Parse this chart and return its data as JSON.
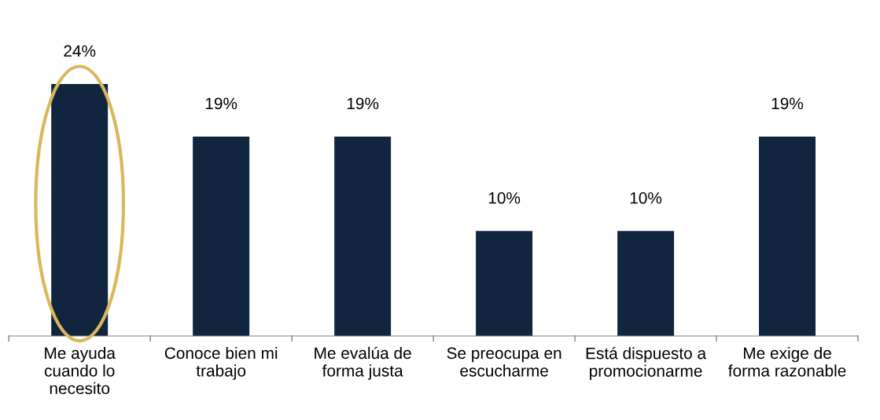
{
  "chart_data": {
    "type": "bar",
    "categories": [
      "Me ayuda\ncuando lo\nnecesito",
      "Conoce bien mi\ntrabajo",
      "Me evalúa de\nforma justa",
      "Se preocupa en\nescucharme",
      "Está dispuesto a\npromocionarme",
      "Me exige de\nforma razonable"
    ],
    "values": [
      24,
      19,
      19,
      10,
      10,
      19
    ],
    "value_labels": [
      "24%",
      "19%",
      "19%",
      "10%",
      "10%",
      "19%"
    ],
    "color": "#12253f"
  }
}
